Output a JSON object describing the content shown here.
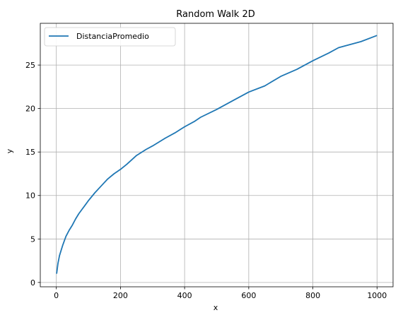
{
  "chart_data": {
    "type": "line",
    "title": "Random Walk 2D",
    "xlabel": "x",
    "ylabel": "y",
    "xlim": [
      -50,
      1050
    ],
    "ylim": [
      -0.5,
      29.8
    ],
    "grid": true,
    "legend_position": "top-left",
    "x_ticks": [
      0,
      200,
      400,
      600,
      800,
      1000
    ],
    "y_ticks": [
      0,
      5,
      10,
      15,
      20,
      25
    ],
    "series": [
      {
        "name": "DistanciaPromedio",
        "color": "#1f77b4",
        "x": [
          1,
          5,
          10,
          20,
          30,
          40,
          50,
          60,
          70,
          80,
          90,
          100,
          120,
          140,
          160,
          180,
          200,
          220,
          250,
          280,
          300,
          340,
          370,
          400,
          430,
          450,
          500,
          550,
          600,
          650,
          700,
          750,
          800,
          850,
          880,
          900,
          950,
          1000
        ],
        "y": [
          1.0,
          2.2,
          3.1,
          4.3,
          5.3,
          6.0,
          6.6,
          7.3,
          7.9,
          8.4,
          8.9,
          9.4,
          10.3,
          11.1,
          11.9,
          12.5,
          13.0,
          13.6,
          14.6,
          15.3,
          15.7,
          16.6,
          17.2,
          17.9,
          18.5,
          19.0,
          19.9,
          20.9,
          21.9,
          22.6,
          23.7,
          24.5,
          25.5,
          26.4,
          27.0,
          27.2,
          27.7,
          28.4
        ]
      }
    ]
  }
}
